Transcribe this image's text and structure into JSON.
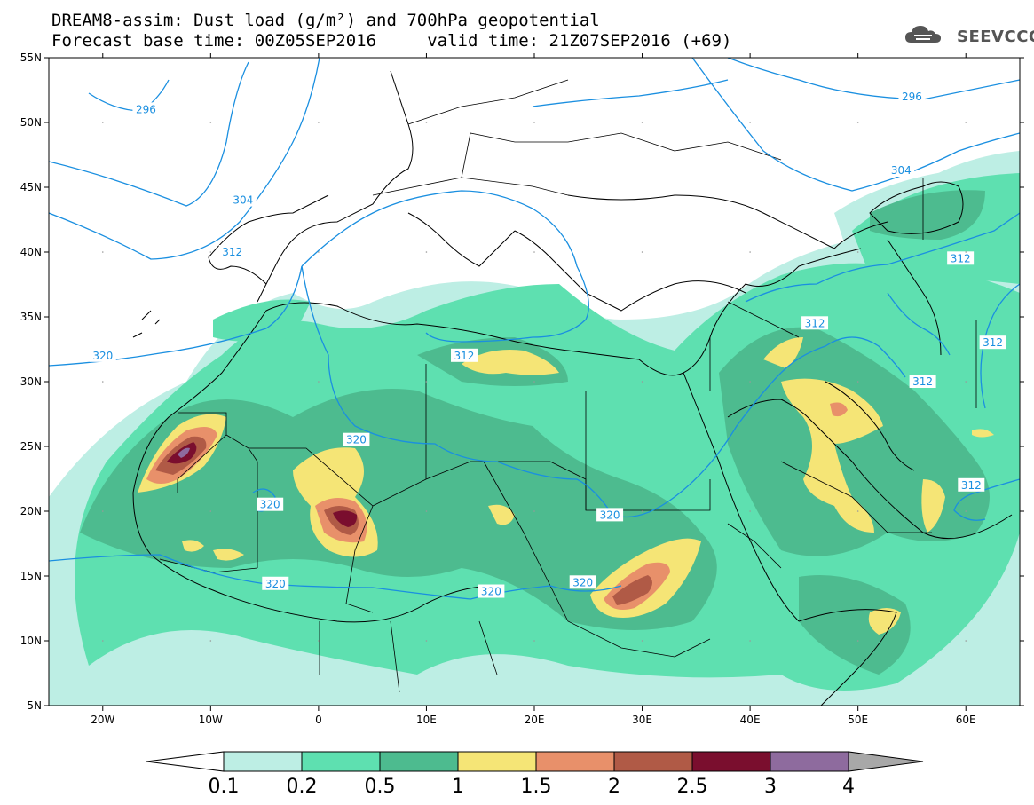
{
  "title": {
    "line1": "DREAM8-assim: Dust load (g/m²) and 700hPa geopotential",
    "line2": "Forecast base time: 00Z05SEP2016     valid time: 21Z07SEP2016 (+69)"
  },
  "logo": {
    "text": "SEEVCCC",
    "icon": "cloud-icon"
  },
  "map": {
    "lat_range": [
      5,
      55
    ],
    "lon_range": [
      -25,
      65
    ],
    "lat_ticks": [
      {
        "value": 55,
        "label": "55N"
      },
      {
        "value": 50,
        "label": "50N"
      },
      {
        "value": 45,
        "label": "45N"
      },
      {
        "value": 40,
        "label": "40N"
      },
      {
        "value": 35,
        "label": "35N"
      },
      {
        "value": 30,
        "label": "30N"
      },
      {
        "value": 25,
        "label": "25N"
      },
      {
        "value": 20,
        "label": "20N"
      },
      {
        "value": 15,
        "label": "15N"
      },
      {
        "value": 10,
        "label": "10N"
      },
      {
        "value": 5,
        "label": "5N"
      }
    ],
    "lon_ticks": [
      {
        "value": -20,
        "label": "20W"
      },
      {
        "value": -10,
        "label": "10W"
      },
      {
        "value": 0,
        "label": "0"
      },
      {
        "value": 10,
        "label": "10E"
      },
      {
        "value": 20,
        "label": "20E"
      },
      {
        "value": 30,
        "label": "30E"
      },
      {
        "value": 40,
        "label": "40E"
      },
      {
        "value": 50,
        "label": "50E"
      },
      {
        "value": 60,
        "label": "60E"
      }
    ],
    "contour_labels": [
      {
        "text": "296",
        "lon": -16,
        "lat": 51
      },
      {
        "text": "304",
        "lon": -7,
        "lat": 44
      },
      {
        "text": "312",
        "lon": -8,
        "lat": 40
      },
      {
        "text": "312",
        "lon": 13.5,
        "lat": 32
      },
      {
        "text": "312",
        "lon": 46,
        "lat": 34.5
      },
      {
        "text": "312",
        "lon": 59.5,
        "lat": 39.5
      },
      {
        "text": "312",
        "lon": 62.5,
        "lat": 33
      },
      {
        "text": "312",
        "lon": 56,
        "lat": 30
      },
      {
        "text": "312",
        "lon": 60.5,
        "lat": 22
      },
      {
        "text": "320",
        "lon": -20,
        "lat": 32
      },
      {
        "text": "320",
        "lon": 3.5,
        "lat": 25.5
      },
      {
        "text": "320",
        "lon": -4.5,
        "lat": 20.5
      },
      {
        "text": "320",
        "lon": 27,
        "lat": 19.7
      },
      {
        "text": "320",
        "lon": -4,
        "lat": 14.4
      },
      {
        "text": "320",
        "lon": 16,
        "lat": 13.8
      },
      {
        "text": "320",
        "lon": 24.5,
        "lat": 14.5
      },
      {
        "text": "304",
        "lon": 54,
        "lat": 46.3
      },
      {
        "text": "296",
        "lon": 55,
        "lat": 52
      }
    ]
  },
  "colorbar": {
    "colors": [
      "#bdeee4",
      "#5ee0b0",
      "#4dbb8f",
      "#f5e576",
      "#e8906a",
      "#b05a46",
      "#7a0e2e",
      "#8e6b9e"
    ],
    "under_color": "#ffffff",
    "over_color": "#a8a8a8",
    "labels": [
      "0.1",
      "0.2",
      "0.5",
      "1",
      "1.5",
      "2",
      "2.5",
      "3",
      "4"
    ]
  }
}
